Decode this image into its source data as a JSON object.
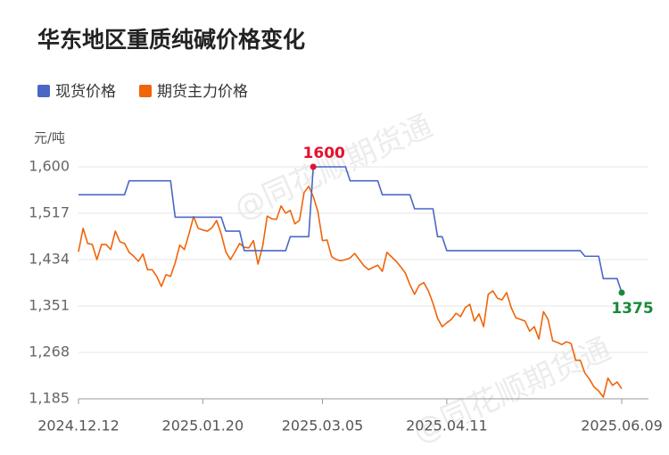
{
  "chart_data": {
    "type": "line",
    "title": "华东地区重质纯碱价格变化",
    "y_unit": "元/吨",
    "watermark": "@同花顺期货通",
    "categories": [
      "2024.12.12",
      null,
      null,
      null,
      null,
      null,
      null,
      null,
      null,
      null,
      null,
      null,
      null,
      null,
      null,
      null,
      null,
      null,
      null,
      null,
      null,
      null,
      null,
      null,
      null,
      null,
      null,
      "2025.01.20",
      null,
      null,
      null,
      null,
      null,
      null,
      null,
      null,
      null,
      null,
      null,
      null,
      null,
      null,
      null,
      null,
      null,
      null,
      null,
      null,
      null,
      null,
      null,
      null,
      null,
      "2025.03.05",
      null,
      null,
      null,
      null,
      null,
      null,
      null,
      null,
      null,
      null,
      null,
      null,
      null,
      null,
      null,
      null,
      null,
      null,
      null,
      null,
      null,
      null,
      null,
      null,
      null,
      null,
      "2025.04.11",
      null,
      null,
      null,
      null,
      null,
      null,
      null,
      null,
      null,
      null,
      null,
      null,
      null,
      null,
      null,
      null,
      null,
      null,
      null,
      null,
      null,
      null,
      null,
      null,
      null,
      null,
      null,
      null,
      null,
      null,
      null,
      null,
      null,
      null,
      null,
      null,
      null,
      "2025.06.09"
    ],
    "series": [
      {
        "name": "现货价格",
        "color": "#4a67c5",
        "values": [
          1550,
          1550,
          1550,
          1550,
          1550,
          1550,
          1550,
          1550,
          1550,
          1550,
          1550,
          1575,
          1575,
          1575,
          1575,
          1575,
          1575,
          1575,
          1575,
          1575,
          1575,
          1510,
          1510,
          1510,
          1510,
          1510,
          1510,
          1510,
          1510,
          1510,
          1510,
          1510,
          1485,
          1485,
          1485,
          1485,
          1450,
          1450,
          1450,
          1450,
          1450,
          1450,
          1450,
          1450,
          1450,
          1450,
          1475,
          1475,
          1475,
          1475,
          1475,
          1600,
          1600,
          1600,
          1600,
          1600,
          1600,
          1600,
          1600,
          1575,
          1575,
          1575,
          1575,
          1575,
          1575,
          1575,
          1550,
          1550,
          1550,
          1550,
          1550,
          1550,
          1550,
          1525,
          1525,
          1525,
          1525,
          1525,
          1475,
          1475,
          1450,
          1450,
          1450,
          1450,
          1450,
          1450,
          1450,
          1450,
          1450,
          1450,
          1450,
          1450,
          1450,
          1450,
          1450,
          1450,
          1450,
          1450,
          1450,
          1450,
          1450,
          1450,
          1450,
          1450,
          1450,
          1450,
          1450,
          1450,
          1450,
          1450,
          1440,
          1440,
          1440,
          1440,
          1400,
          1400,
          1400,
          1400,
          1375
        ]
      },
      {
        "name": "期货主力价格",
        "color": "#f0640a",
        "values": [
          1448,
          1490,
          1463,
          1461,
          1434,
          1461,
          1461,
          1452,
          1485,
          1466,
          1463,
          1447,
          1440,
          1431,
          1444,
          1416,
          1416,
          1404,
          1386,
          1407,
          1404,
          1428,
          1460,
          1452,
          1480,
          1511,
          1490,
          1487,
          1485,
          1491,
          1504,
          1480,
          1448,
          1434,
          1448,
          1463,
          1456,
          1455,
          1468,
          1426,
          1458,
          1512,
          1507,
          1506,
          1530,
          1517,
          1522,
          1498,
          1504,
          1554,
          1565,
          1547,
          1520,
          1468,
          1469,
          1439,
          1434,
          1432,
          1434,
          1437,
          1445,
          1434,
          1423,
          1416,
          1420,
          1424,
          1413,
          1447,
          1439,
          1431,
          1421,
          1410,
          1389,
          1372,
          1388,
          1393,
          1378,
          1356,
          1329,
          1314,
          1321,
          1327,
          1338,
          1332,
          1348,
          1354,
          1324,
          1337,
          1314,
          1372,
          1378,
          1365,
          1362,
          1375,
          1348,
          1330,
          1327,
          1324,
          1306,
          1314,
          1292,
          1341,
          1327,
          1289,
          1286,
          1282,
          1287,
          1284,
          1254,
          1254,
          1231,
          1220,
          1206,
          1199,
          1188,
          1222,
          1209,
          1215,
          1203
        ]
      }
    ],
    "annotations": [
      {
        "label": "1600",
        "point": 51,
        "color": "#e8102e"
      },
      {
        "label": "1375",
        "point": 118,
        "color": "#1a8a3a"
      }
    ],
    "ylim": [
      1185,
      1600
    ],
    "yticks": [
      {
        "value": 1185,
        "label": "1,185"
      },
      {
        "value": 1268,
        "label": "1,268"
      },
      {
        "value": 1351,
        "label": "1,351"
      },
      {
        "value": 1434,
        "label": "1,434"
      },
      {
        "value": 1517,
        "label": "1,517"
      },
      {
        "value": 1600,
        "label": "1,600"
      }
    ],
    "grid": true
  }
}
